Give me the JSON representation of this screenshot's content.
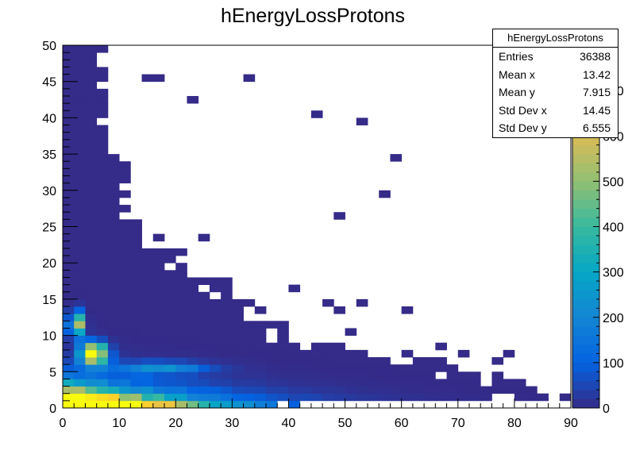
{
  "chart_data": {
    "type": "heatmap",
    "title": "hEnergyLossProtons",
    "xlabel": "",
    "ylabel": "",
    "xlim": [
      0,
      90
    ],
    "ylim": [
      0,
      50
    ],
    "x_ticks": [
      0,
      10,
      20,
      30,
      40,
      50,
      60,
      70,
      80,
      90
    ],
    "y_ticks": [
      0,
      5,
      10,
      15,
      20,
      25,
      30,
      35,
      40,
      45,
      50
    ],
    "zlim": [
      0,
      800
    ],
    "z_ticks": [
      0,
      100,
      200,
      300,
      400,
      500,
      600,
      700
    ],
    "grid": false,
    "palette": [
      "#352a87",
      "#0363e1",
      "#1485d4",
      "#06a7c6",
      "#38b99e",
      "#92bf73",
      "#d9ba56",
      "#fcce2e",
      "#f9fb0e"
    ],
    "stats": {
      "name": "hEnergyLossProtons",
      "entries_label": "Entries",
      "entries": "36388",
      "meanx_label": "Mean x",
      "meanx": "13.42",
      "meany_label": "Mean y",
      "meany": "7.915",
      "stdx_label": "Std Dev x",
      "stdx": "14.45",
      "stdy_label": "Std Dev y",
      "stdy": "6.555"
    }
  }
}
